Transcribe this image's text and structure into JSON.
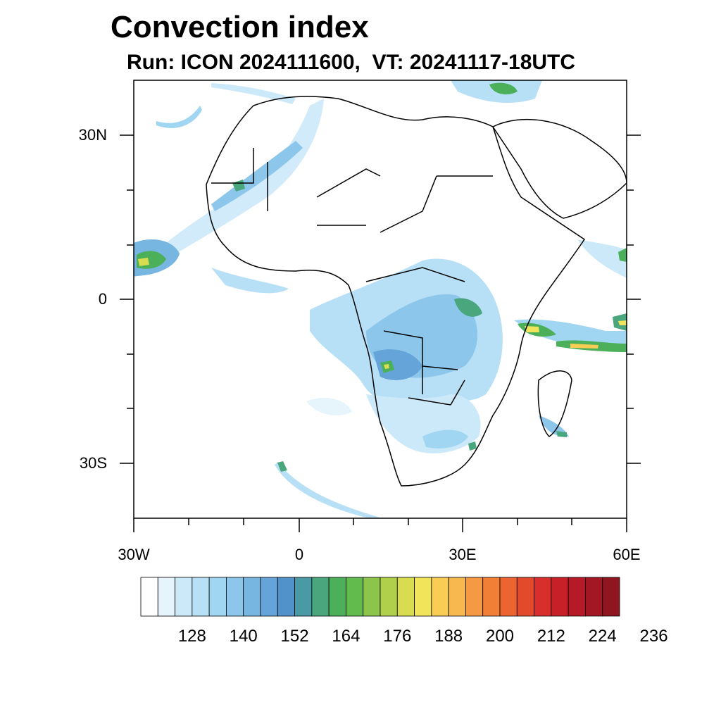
{
  "title": "Convection index",
  "subtitle": "Run: ICON 2024111600,  VT: 20241117-18UTC",
  "map": {
    "lon_range": [
      -30,
      60
    ],
    "lat_range": [
      -40,
      40
    ],
    "lat_labels": [
      "30N",
      "0",
      "30S"
    ],
    "lon_labels": [
      "30W",
      "0",
      "30E",
      "60E"
    ]
  },
  "colorbar": {
    "labels": [
      "128",
      "140",
      "152",
      "164",
      "176",
      "188",
      "200",
      "212",
      "224",
      "236"
    ],
    "colors": [
      "#ffffff",
      "#e6f4fc",
      "#cce9f9",
      "#b7e0f6",
      "#a1d6f2",
      "#8cc7eb",
      "#78b6e2",
      "#64a4d8",
      "#5092c9",
      "#4a9aa6",
      "#4aa77d",
      "#4cb05b",
      "#62bb4d",
      "#8dc54a",
      "#b0d04b",
      "#d8dd4f",
      "#f2e45a",
      "#f8cc55",
      "#f7b84f",
      "#f59a42",
      "#f27f36",
      "#ec6430",
      "#e34a2c",
      "#d92f2c",
      "#c82029",
      "#b61927",
      "#a31725",
      "#8f1621"
    ]
  }
}
